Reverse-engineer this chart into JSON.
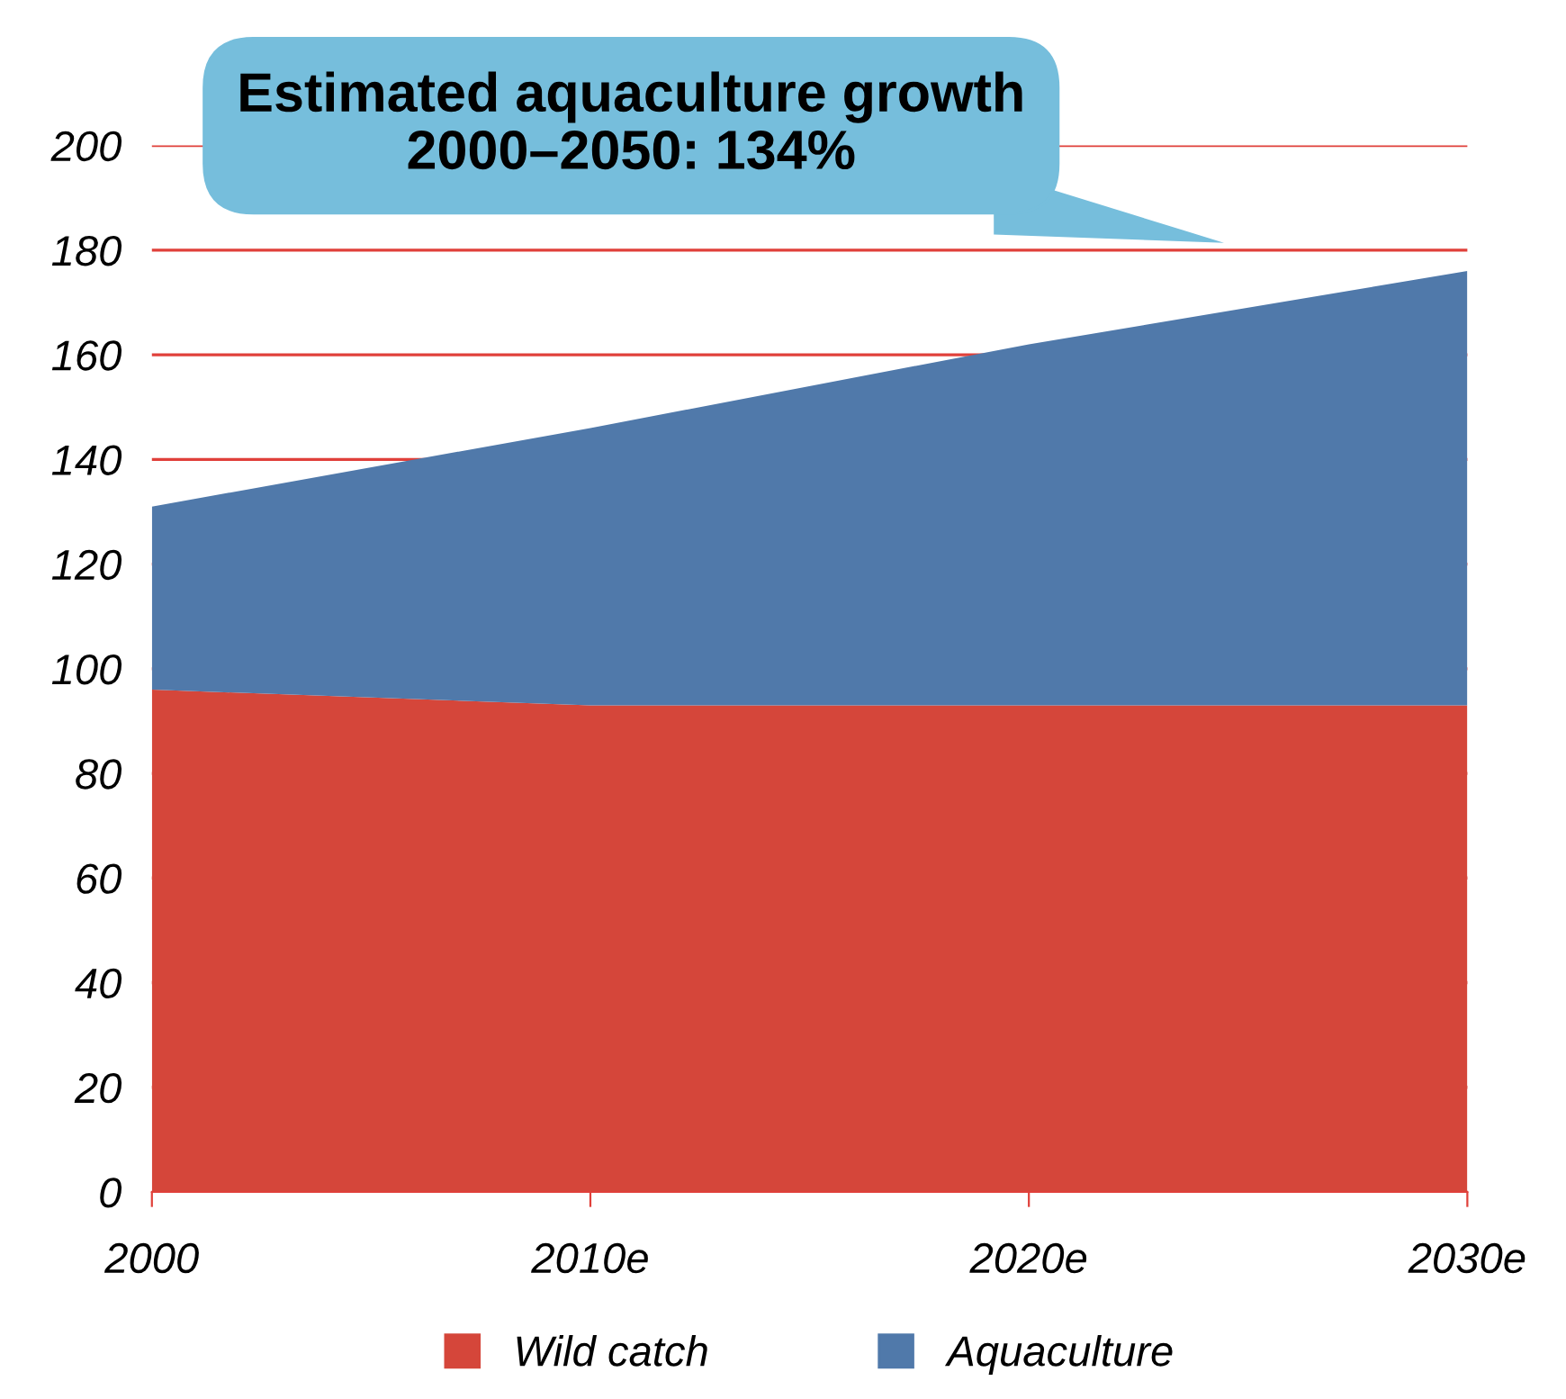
{
  "chart_data": {
    "type": "area",
    "stacked": true,
    "categories": [
      "2000",
      "2010e",
      "2020e",
      "2030e"
    ],
    "series": [
      {
        "name": "Wild catch",
        "color": "#d5463a",
        "values": [
          96,
          93,
          93,
          93
        ]
      },
      {
        "name": "Aquaculture",
        "color": "#5079aa",
        "values": [
          35,
          53,
          69,
          83
        ]
      }
    ],
    "ylim": [
      0,
      200
    ],
    "yticks": [
      0,
      20,
      40,
      60,
      80,
      100,
      120,
      140,
      160,
      180,
      200
    ],
    "grid": "y",
    "legend": "bottom",
    "annotations": [
      "Estimated aquaculture growth 2000–2050: 134%"
    ]
  }
}
